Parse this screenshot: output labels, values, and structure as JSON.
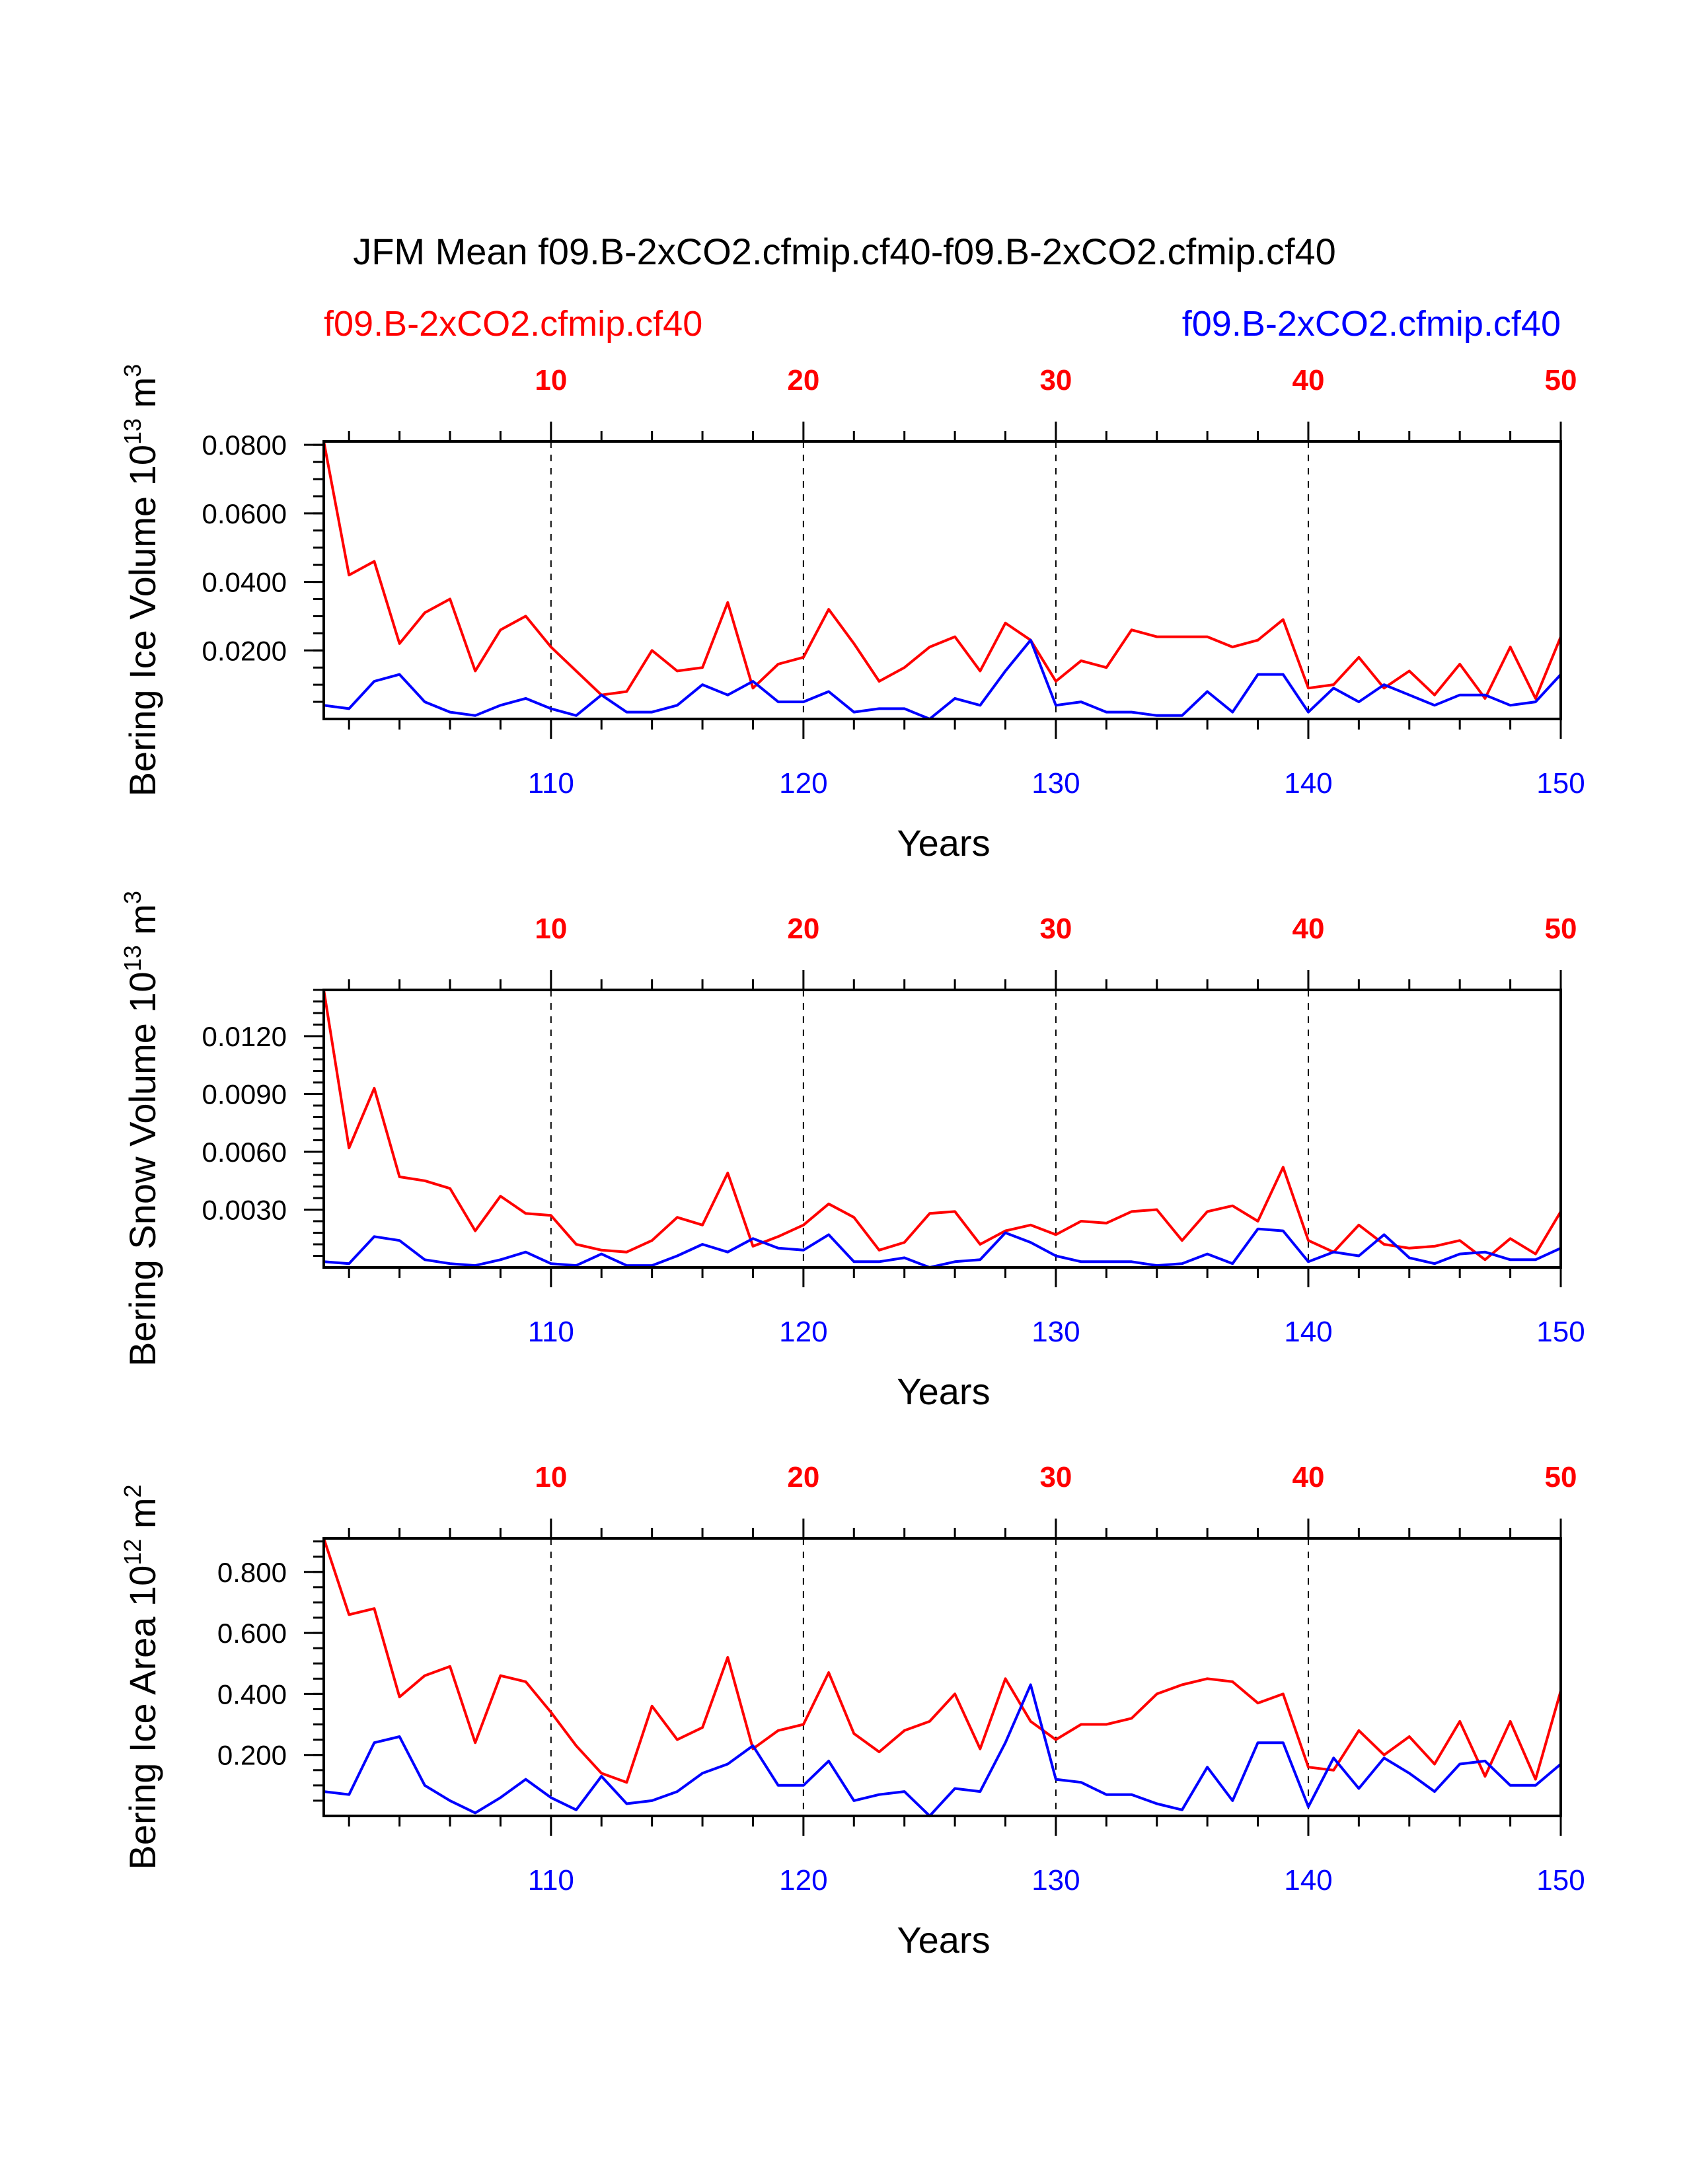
{
  "title": "JFM Mean f09.B-2xCO2.cfmip.cf40-f09.B-2xCO2.cfmip.cf40",
  "colors": {
    "red": "#ff0000",
    "blue": "#0000ff",
    "axis": "#000000"
  },
  "legend": {
    "left": "f09.B-2xCO2.cfmip.cf40",
    "right": "f09.B-2xCO2.cfmip.cf40"
  },
  "chart_data": [
    {
      "type": "line",
      "ylabel": "Bering Ice Volume 10",
      "ylabel_exp": "13",
      "ylabel_unit": " m",
      "ylabel_unit_exp": "3",
      "xlabel": "Years",
      "ylim": [
        0.0,
        0.081
      ],
      "yticks": [
        0.02,
        0.04,
        0.06,
        0.08
      ],
      "ytick_labels": [
        "0.0200",
        "0.0400",
        "0.0600",
        "0.0800"
      ],
      "yminor_step": 0.005,
      "bottom_axis": {
        "range": [
          101,
          150
        ],
        "ticks": [
          110,
          120,
          130,
          140,
          150
        ]
      },
      "top_axis": {
        "range": [
          1,
          50
        ],
        "ticks": [
          10,
          20,
          30,
          40,
          50
        ]
      },
      "series": [
        {
          "name": "f09.B-2xCO2.cfmip.cf40 (red)",
          "color": "red",
          "values": [
            0.081,
            0.042,
            0.046,
            0.022,
            0.031,
            0.035,
            0.014,
            0.026,
            0.03,
            0.021,
            0.014,
            0.007,
            0.008,
            0.02,
            0.014,
            0.015,
            0.034,
            0.009,
            0.016,
            0.018,
            0.032,
            0.022,
            0.011,
            0.015,
            0.021,
            0.024,
            0.014,
            0.028,
            0.023,
            0.011,
            0.017,
            0.015,
            0.026,
            0.024,
            0.024,
            0.024,
            0.021,
            0.023,
            0.029,
            0.009,
            0.01,
            0.018,
            0.009,
            0.014,
            0.007,
            0.016,
            0.006,
            0.021,
            0.006,
            0.024
          ]
        },
        {
          "name": "f09.B-2xCO2.cfmip.cf40 (blue)",
          "color": "blue",
          "values": [
            0.004,
            0.003,
            0.011,
            0.013,
            0.005,
            0.002,
            0.001,
            0.004,
            0.006,
            0.003,
            0.001,
            0.007,
            0.002,
            0.002,
            0.004,
            0.01,
            0.007,
            0.011,
            0.005,
            0.005,
            0.008,
            0.002,
            0.003,
            0.003,
            0.0,
            0.006,
            0.004,
            0.014,
            0.023,
            0.004,
            0.005,
            0.002,
            0.002,
            0.001,
            0.001,
            0.008,
            0.002,
            0.013,
            0.013,
            0.002,
            0.009,
            0.005,
            0.01,
            0.007,
            0.004,
            0.007,
            0.007,
            0.004,
            0.005,
            0.013
          ]
        }
      ]
    },
    {
      "type": "line",
      "ylabel": "Bering Snow Volume 10",
      "ylabel_exp": "13",
      "ylabel_unit": " m",
      "ylabel_unit_exp": "3",
      "xlabel": "Years",
      "ylim": [
        0.0,
        0.0144
      ],
      "yticks": [
        0.003,
        0.006,
        0.009,
        0.012
      ],
      "ytick_labels": [
        "0.0030",
        "0.0060",
        "0.0090",
        "0.0120"
      ],
      "yminor_step": 0.0006,
      "bottom_axis": {
        "range": [
          101,
          150
        ],
        "ticks": [
          110,
          120,
          130,
          140,
          150
        ]
      },
      "top_axis": {
        "range": [
          1,
          50
        ],
        "ticks": [
          10,
          20,
          30,
          40,
          50
        ]
      },
      "series": [
        {
          "name": "f09.B-2xCO2.cfmip.cf40 (red)",
          "color": "red",
          "values": [
            0.0144,
            0.0062,
            0.0093,
            0.0047,
            0.0045,
            0.0041,
            0.0019,
            0.0037,
            0.0028,
            0.0027,
            0.0012,
            0.0009,
            0.0008,
            0.0014,
            0.0026,
            0.0022,
            0.0049,
            0.0011,
            0.0016,
            0.0022,
            0.0033,
            0.0026,
            0.0009,
            0.0013,
            0.0028,
            0.0029,
            0.0012,
            0.0019,
            0.0022,
            0.0017,
            0.0024,
            0.0023,
            0.0029,
            0.003,
            0.0014,
            0.0029,
            0.0032,
            0.0024,
            0.0052,
            0.0014,
            0.0008,
            0.0022,
            0.0012,
            0.001,
            0.0011,
            0.0014,
            0.0004,
            0.0015,
            0.0007,
            0.0029
          ]
        },
        {
          "name": "f09.B-2xCO2.cfmip.cf40 (blue)",
          "color": "blue",
          "values": [
            0.0003,
            0.0002,
            0.0016,
            0.0014,
            0.0004,
            0.0002,
            0.0001,
            0.0004,
            0.0008,
            0.0002,
            0.0001,
            0.0007,
            0.0001,
            0.0001,
            0.0006,
            0.0012,
            0.0008,
            0.0015,
            0.001,
            0.0009,
            0.0017,
            0.0003,
            0.0003,
            0.0005,
            0.0,
            0.0003,
            0.0004,
            0.0018,
            0.0013,
            0.0006,
            0.0003,
            0.0003,
            0.0003,
            0.0001,
            0.0002,
            0.0007,
            0.0002,
            0.002,
            0.0019,
            0.0003,
            0.0008,
            0.0006,
            0.0017,
            0.0005,
            0.0002,
            0.0007,
            0.0008,
            0.0004,
            0.0004,
            0.001
          ]
        }
      ]
    },
    {
      "type": "line",
      "ylabel": "Bering Ice Area 10",
      "ylabel_exp": "12",
      "ylabel_unit": " m",
      "ylabel_unit_exp": "2",
      "xlabel": "Years",
      "ylim": [
        0.0,
        0.91
      ],
      "yticks": [
        0.2,
        0.4,
        0.6,
        0.8
      ],
      "ytick_labels": [
        "0.200",
        "0.400",
        "0.600",
        "0.800"
      ],
      "yminor_step": 0.05,
      "bottom_axis": {
        "range": [
          101,
          150
        ],
        "ticks": [
          110,
          120,
          130,
          140,
          150
        ]
      },
      "top_axis": {
        "range": [
          1,
          50
        ],
        "ticks": [
          10,
          20,
          30,
          40,
          50
        ]
      },
      "series": [
        {
          "name": "f09.B-2xCO2.cfmip.cf40 (red)",
          "color": "red",
          "values": [
            0.91,
            0.66,
            0.68,
            0.39,
            0.46,
            0.49,
            0.24,
            0.46,
            0.44,
            0.34,
            0.23,
            0.14,
            0.11,
            0.36,
            0.25,
            0.29,
            0.52,
            0.22,
            0.28,
            0.3,
            0.47,
            0.27,
            0.21,
            0.28,
            0.31,
            0.4,
            0.22,
            0.45,
            0.31,
            0.25,
            0.3,
            0.3,
            0.32,
            0.4,
            0.43,
            0.45,
            0.44,
            0.37,
            0.4,
            0.16,
            0.15,
            0.28,
            0.2,
            0.26,
            0.17,
            0.31,
            0.13,
            0.31,
            0.12,
            0.41
          ]
        },
        {
          "name": "f09.B-2xCO2.cfmip.cf40 (blue)",
          "color": "blue",
          "values": [
            0.08,
            0.07,
            0.24,
            0.26,
            0.1,
            0.05,
            0.01,
            0.06,
            0.12,
            0.06,
            0.02,
            0.13,
            0.04,
            0.05,
            0.08,
            0.14,
            0.17,
            0.23,
            0.1,
            0.1,
            0.18,
            0.05,
            0.07,
            0.08,
            0.0,
            0.09,
            0.08,
            0.24,
            0.43,
            0.12,
            0.11,
            0.07,
            0.07,
            0.04,
            0.02,
            0.16,
            0.05,
            0.24,
            0.24,
            0.03,
            0.19,
            0.09,
            0.19,
            0.14,
            0.08,
            0.17,
            0.18,
            0.1,
            0.1,
            0.17
          ]
        }
      ]
    }
  ]
}
